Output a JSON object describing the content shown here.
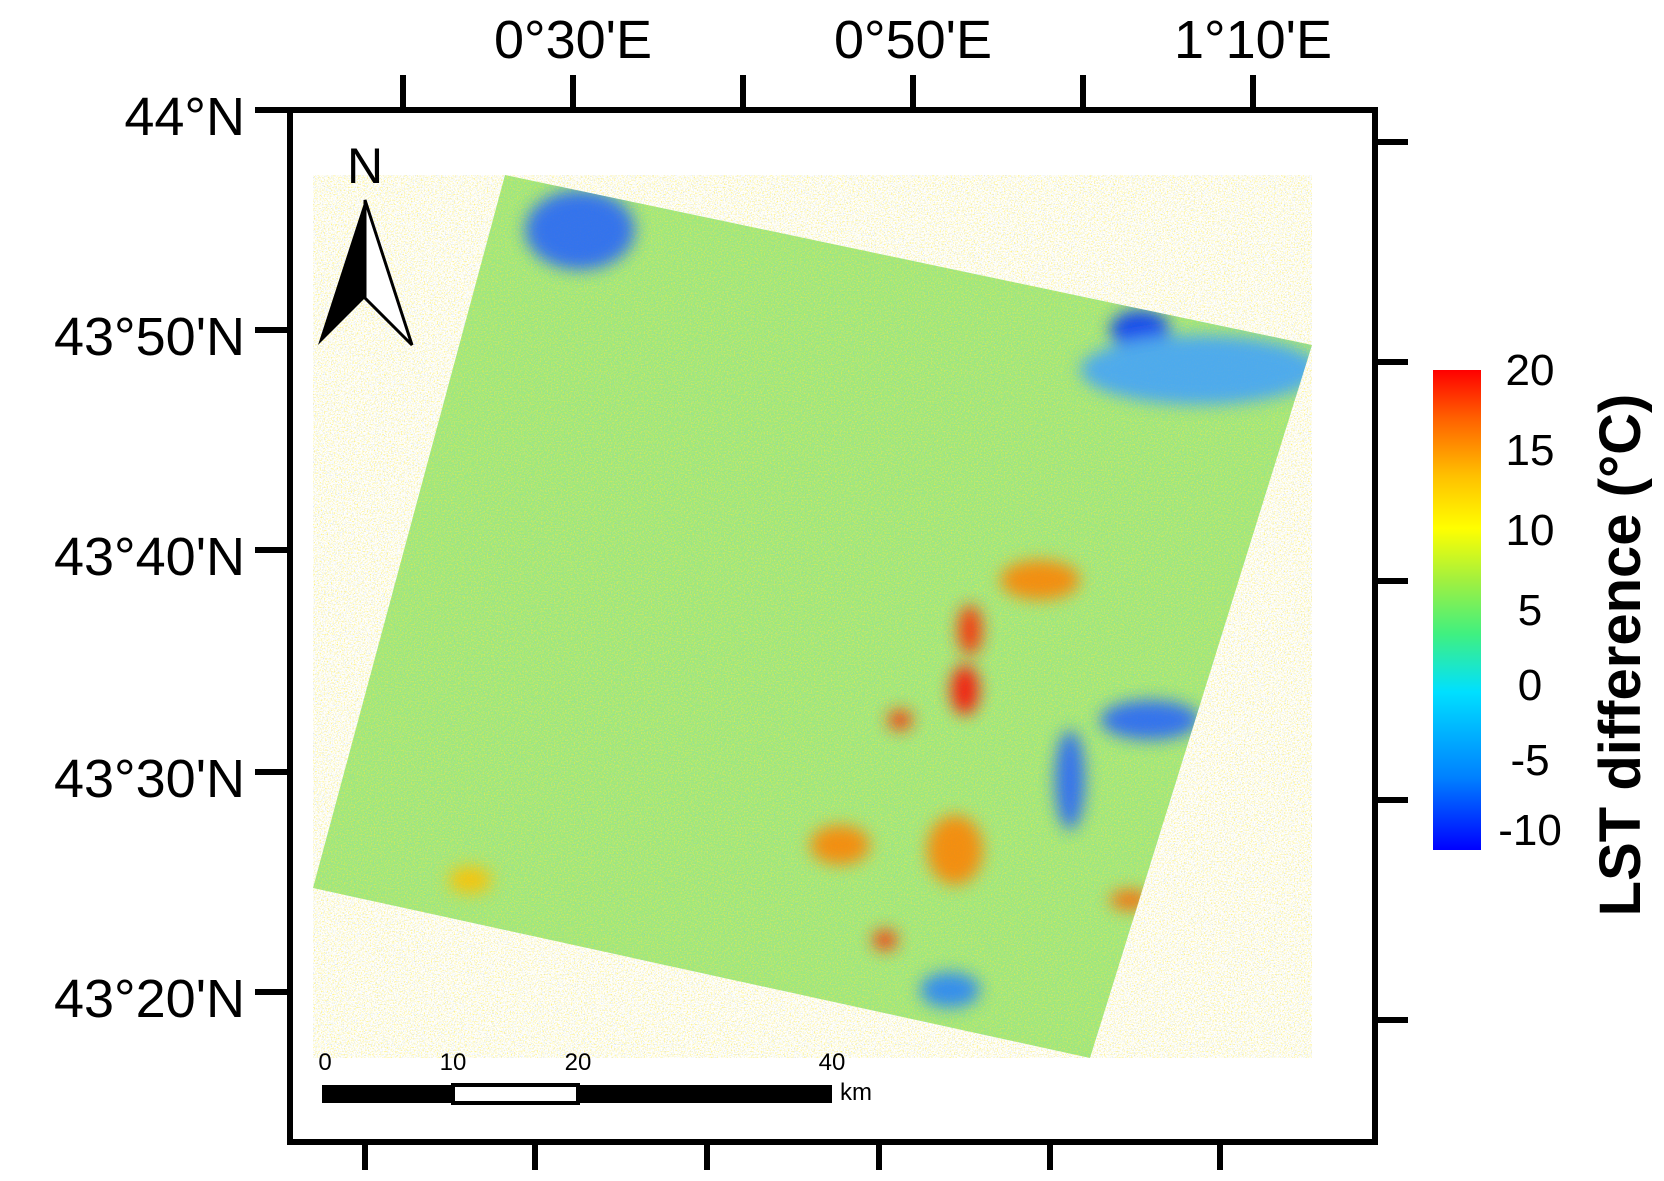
{
  "map": {
    "top_ticks": [
      "0°30'E",
      "0°50'E",
      "1°10'E"
    ],
    "left_ticks": [
      "44°N",
      "43°50'N",
      "43°40'N",
      "43°30'N",
      "43°20'N"
    ],
    "north_arrow": {
      "label": "N"
    },
    "scale_bar": {
      "labels": [
        "0",
        "10",
        "20",
        "40"
      ],
      "unit": "km"
    },
    "colorbar": {
      "title": "LST difference (°C)",
      "labels": [
        "20",
        "15",
        "10",
        "5",
        "0",
        "-5",
        "-10"
      ],
      "colors": [
        "#0000ff",
        "#0080ff",
        "#00e0ff",
        "#40f080",
        "#a0f040",
        "#ffff00",
        "#ffc000",
        "#ff6000",
        "#ff0000"
      ]
    },
    "colors": {
      "background": "#80e080",
      "cool": "#2060ff",
      "warm": "#ff4000"
    }
  }
}
